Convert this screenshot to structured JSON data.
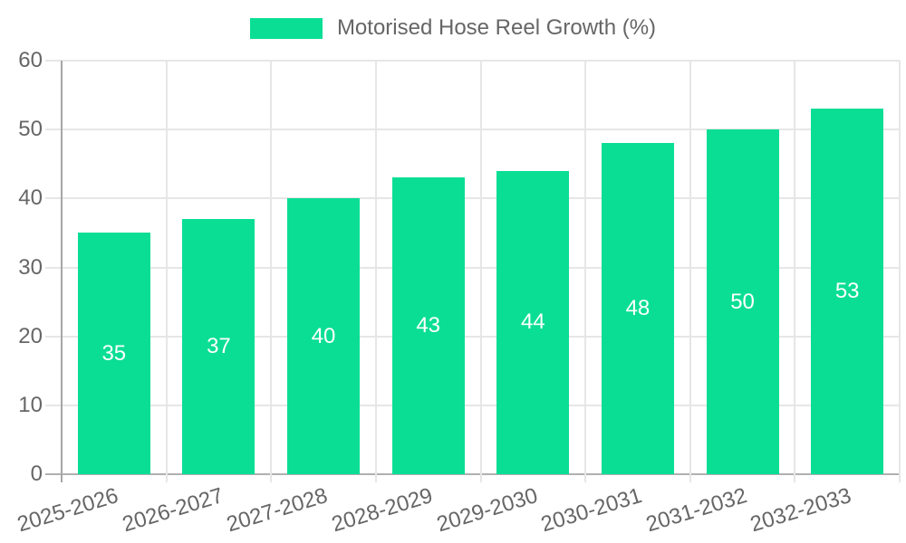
{
  "legend": {
    "label": "Motorised Hose Reel Growth (%)"
  },
  "colors": {
    "bar": "#0ade95",
    "grid": "#e6e6e6",
    "axis_y": "#a6a6a6",
    "axis_x": "#b0b0b0",
    "tick_text": "#666666",
    "bar_label_text": "#ffffff",
    "background": "#ffffff"
  },
  "chart_data": {
    "type": "bar",
    "title": "",
    "legend_entries": [
      "Motorised Hose Reel Growth (%)"
    ],
    "legend_position": "top",
    "categories": [
      "2025-2026",
      "2026-2027",
      "2027-2028",
      "2028-2029",
      "2029-2030",
      "2030-2031",
      "2031-2032",
      "2032-2033"
    ],
    "values": [
      35,
      37,
      40,
      43,
      44,
      48,
      50,
      53
    ],
    "bar_value_labels": [
      "35",
      "37",
      "40",
      "43",
      "44",
      "48",
      "50",
      "53"
    ],
    "bar_labels_inside": true,
    "xlabel": "",
    "ylabel": "",
    "ylim": [
      0,
      60
    ],
    "yticks": [
      0,
      10,
      20,
      30,
      40,
      50,
      60
    ],
    "ytick_labels": [
      "0",
      "10",
      "20",
      "30",
      "40",
      "50",
      "60"
    ],
    "grid": true,
    "x_label_rotation_deg": -17
  }
}
